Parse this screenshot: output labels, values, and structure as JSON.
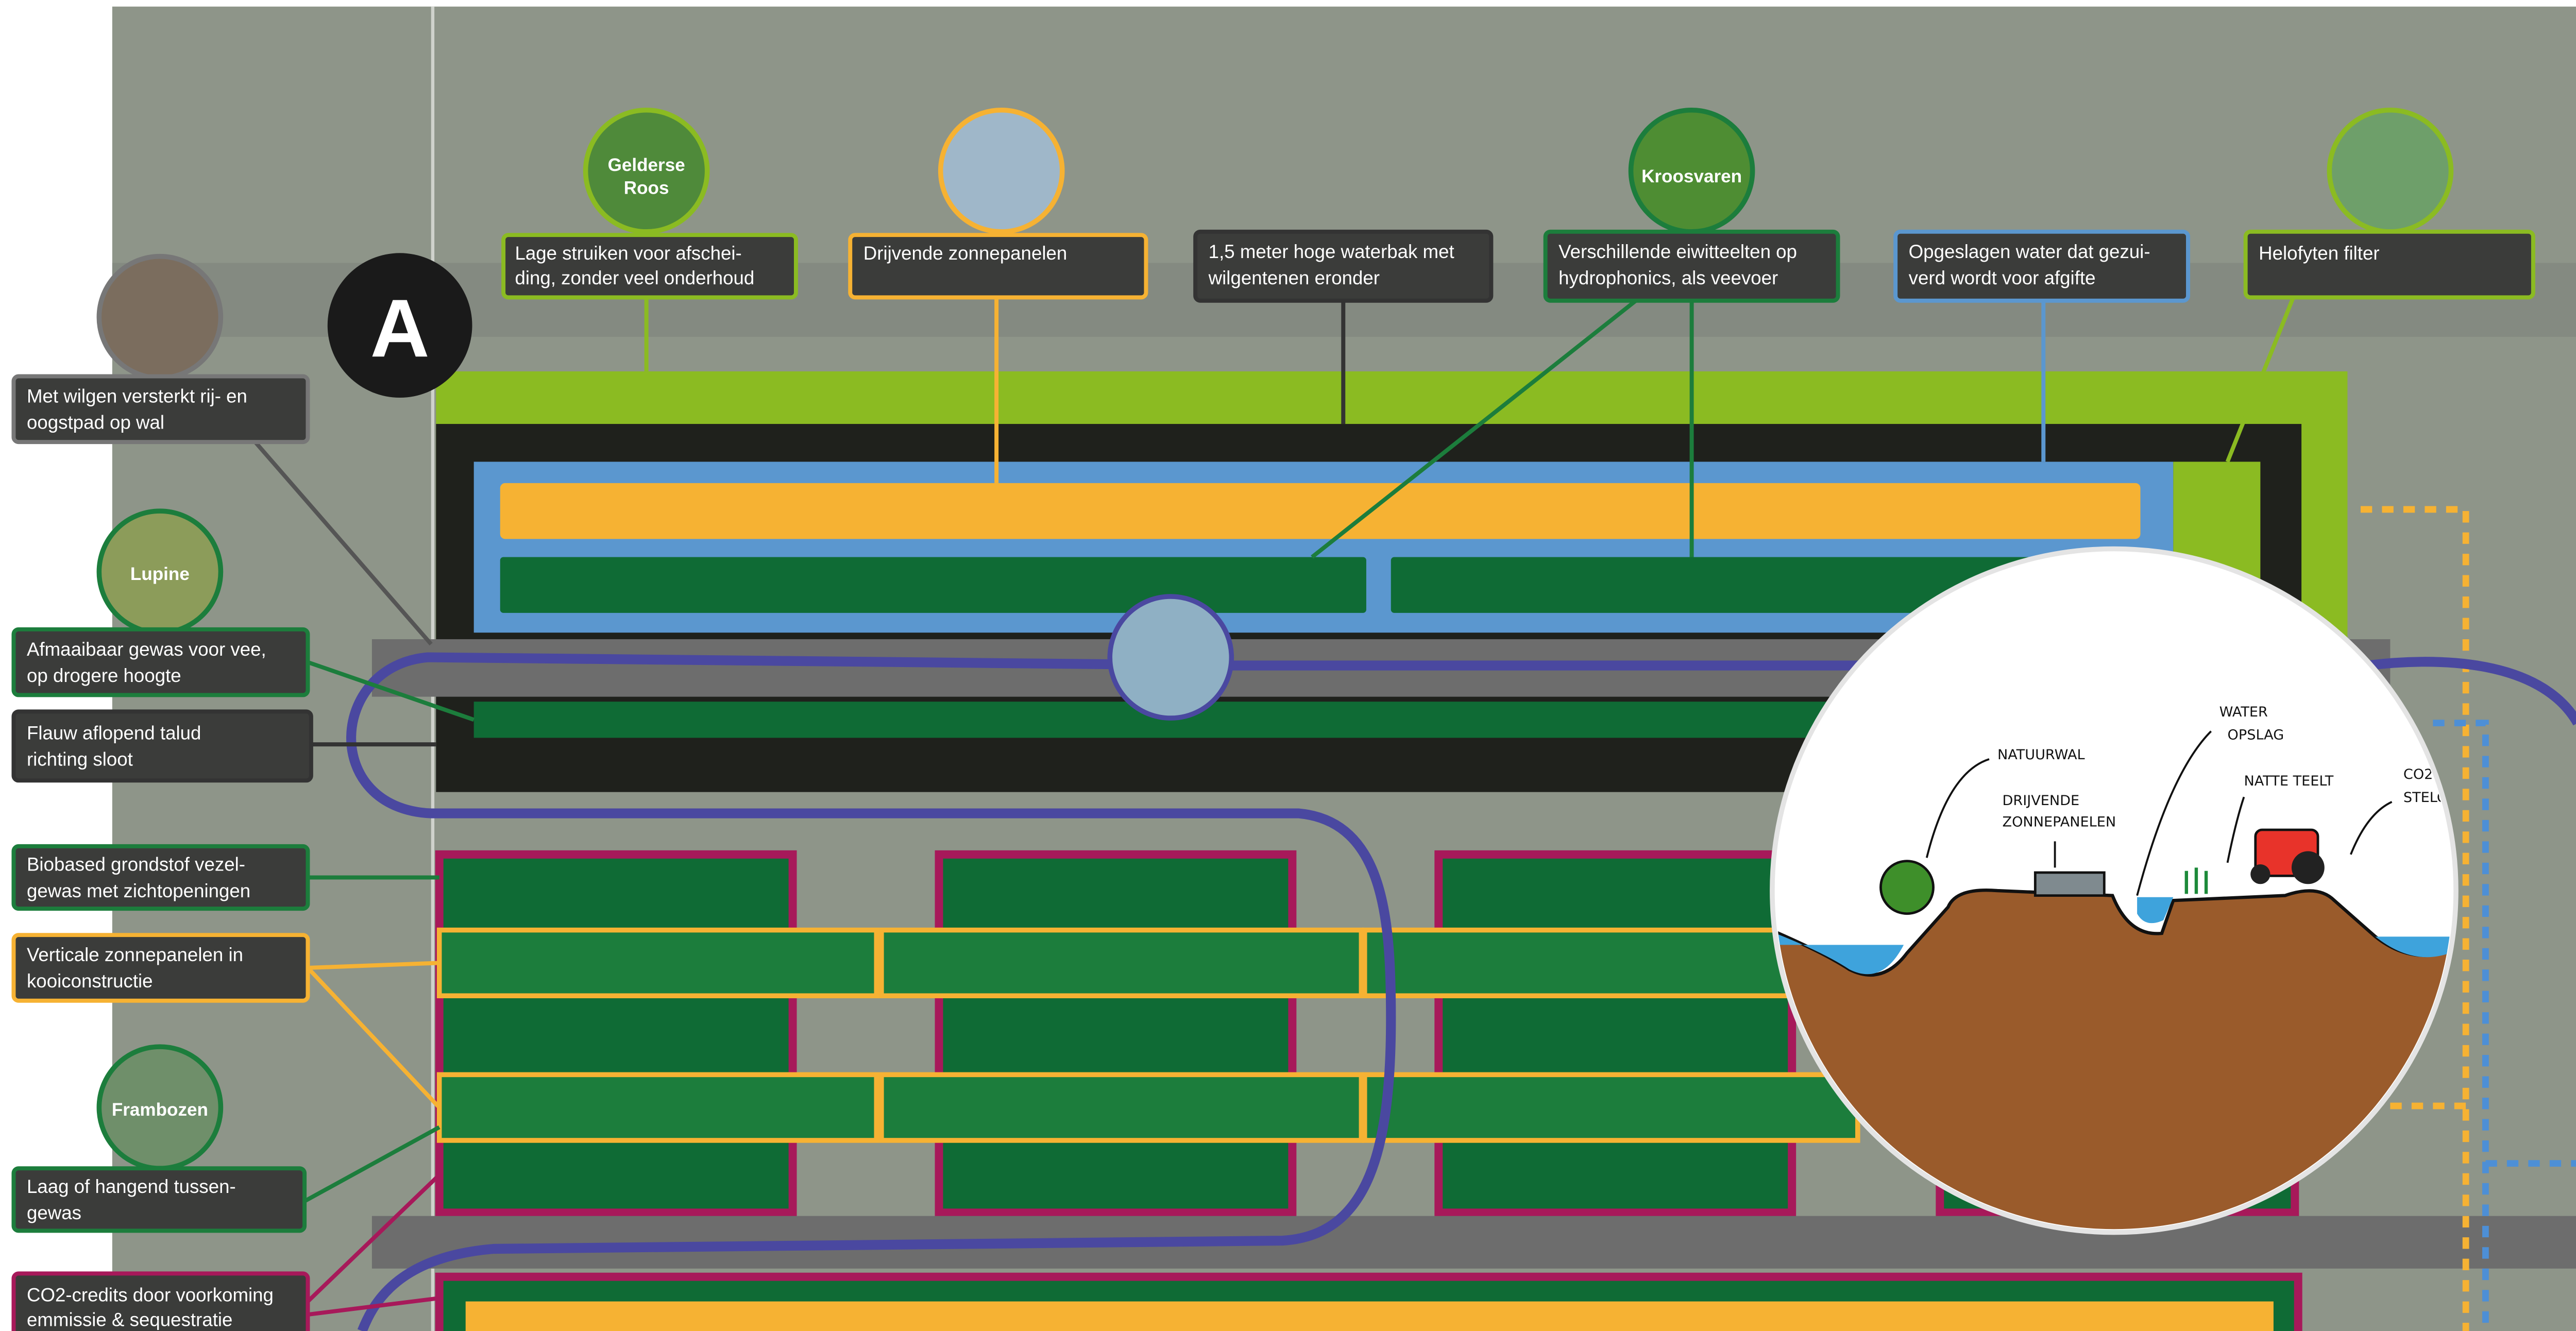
{
  "marker": "A",
  "top_callouts": [
    {
      "lines": [
        "Lage struiken voor afschei-",
        "ding, zonder veel onderhoud"
      ]
    },
    {
      "lines": [
        "Drijvende zonnepanelen"
      ]
    },
    {
      "lines": [
        "1,5 meter hoge waterbak met",
        "wilgentenen eronder"
      ]
    },
    {
      "lines": [
        "Verschillende eiwitteelten op",
        "hydrophonics, als veevoer"
      ]
    },
    {
      "lines": [
        "Opgeslagen water dat gezui-",
        "verd wordt voor afgifte"
      ]
    },
    {
      "lines": [
        "Helofyten filter"
      ]
    }
  ],
  "left_callouts": [
    {
      "lines": [
        "Met wilgen versterkt rij- en",
        "oogstpad op wal"
      ]
    },
    {
      "lines": [
        "Afmaaibaar gewas voor vee,",
        "op drogere hoogte"
      ]
    },
    {
      "lines": [
        "Flauw aflopend talud",
        "richting sloot"
      ]
    },
    {
      "lines": [
        "Biobased grondstof vezel-",
        "gewas met zichtopeningen"
      ]
    },
    {
      "lines": [
        "Verticale zonnepanelen in",
        "kooiconstructie"
      ]
    },
    {
      "lines": [
        "Laag of hangend tussen-",
        "gewas"
      ]
    },
    {
      "lines": [
        "CO2-credits door voorkoming",
        "emmissie & sequestratie"
      ]
    }
  ],
  "photos": [
    {
      "lines": [
        "Gelderse",
        "Roos"
      ]
    },
    {
      "lines": [
        "Kroosvaren"
      ]
    },
    {
      "lines": [
        "Lupine"
      ]
    },
    {
      "lines": [
        "Frambozen"
      ]
    }
  ],
  "sketch_labels": [
    {
      "lines": [
        "NATUURWAL"
      ]
    },
    {
      "lines": [
        "WATER",
        "OPSLAG"
      ]
    },
    {
      "lines": [
        "DRIJVENDE",
        "ZONNEPANELEN"
      ]
    },
    {
      "lines": [
        "NATTE TEELT"
      ]
    },
    {
      "lines": [
        "CO2",
        "STELO"
      ]
    }
  ]
}
